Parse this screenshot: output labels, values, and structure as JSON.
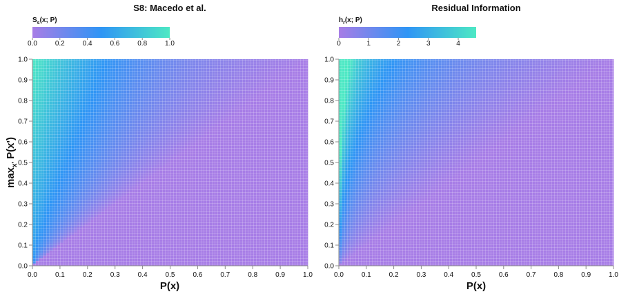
{
  "chart_data": [
    {
      "type": "heatmap",
      "title": "S8: Macedo et al.",
      "colorbar": {
        "label_main": "S",
        "label_sub": "s",
        "label_rest": "(x; P)",
        "range": [
          0.0,
          1.0
        ],
        "ticks": [
          "0.0",
          "0.2",
          "0.4",
          "0.6",
          "0.8",
          "1.0"
        ],
        "colors": [
          "#a77de6",
          "#2f95f5",
          "#4de8c4"
        ]
      },
      "xlabel": "P(x)",
      "ylabel_main": "max",
      "ylabel_sub": "x'",
      "ylabel_rest": " P(x')",
      "xlim": [
        0.0,
        1.0
      ],
      "ylim": [
        0.0,
        1.0
      ],
      "x_ticks": [
        "0.0",
        "0.1",
        "0.2",
        "0.3",
        "0.4",
        "0.5",
        "0.6",
        "0.7",
        "0.8",
        "0.9",
        "1.0"
      ],
      "y_ticks": [
        "0.0",
        "0.1",
        "0.2",
        "0.3",
        "0.4",
        "0.5",
        "0.6",
        "0.7",
        "0.8",
        "0.9",
        "1.0"
      ],
      "grid": false,
      "region_values": {
        "below_diagonal": 0.0,
        "diagonal_low_corner": 0.2,
        "diagonal_high_corner": 0.45,
        "top_left_corner": 1.0
      }
    },
    {
      "type": "heatmap",
      "title": "Residual Information",
      "colorbar": {
        "label_main": "h",
        "label_sub": "r",
        "label_rest": "(x; P)",
        "range": [
          0,
          4.6
        ],
        "ticks": [
          "0",
          "1",
          "2",
          "3",
          "4"
        ],
        "tick_values": [
          0,
          1,
          2,
          3,
          4
        ],
        "colors": [
          "#a77de6",
          "#2f95f5",
          "#4de8c4"
        ]
      },
      "xlabel": "P(x)",
      "xlim": [
        0.0,
        1.0
      ],
      "ylim": [
        0.0,
        1.0
      ],
      "x_ticks": [
        "0.0",
        "0.1",
        "0.2",
        "0.3",
        "0.4",
        "0.5",
        "0.6",
        "0.7",
        "0.8",
        "0.9",
        "1.0"
      ],
      "y_ticks": [
        "0.0",
        "0.1",
        "0.2",
        "0.3",
        "0.4",
        "0.5",
        "0.6",
        "0.7",
        "0.8",
        "0.9",
        "1.0"
      ],
      "grid": false,
      "region_values": {
        "below_diagonal": 0.0,
        "near_x_zero_top": 4.6
      }
    }
  ]
}
